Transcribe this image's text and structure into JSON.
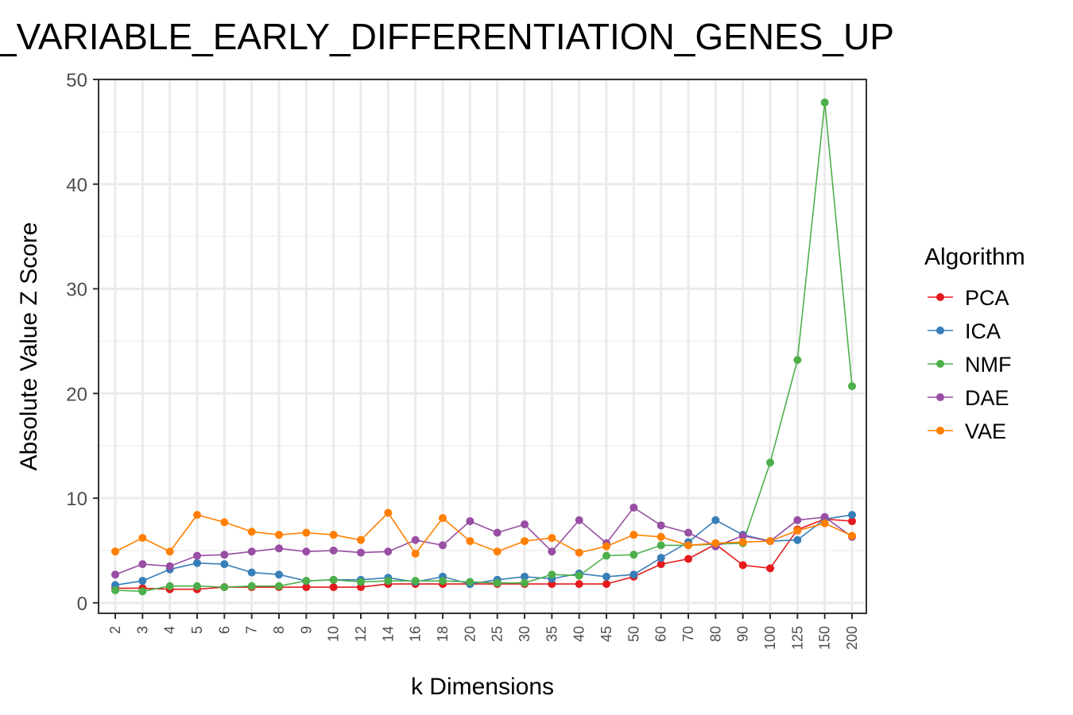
{
  "chart_data": {
    "type": "line",
    "title": "_VARIABLE_EARLY_DIFFERENTIATION_GENES_UP",
    "xlabel": "k Dimensions",
    "ylabel": "Absolute Value Z Score",
    "categories": [
      "2",
      "3",
      "4",
      "5",
      "6",
      "7",
      "8",
      "9",
      "10",
      "12",
      "14",
      "16",
      "18",
      "20",
      "25",
      "30",
      "35",
      "40",
      "45",
      "50",
      "60",
      "70",
      "80",
      "90",
      "100",
      "125",
      "150",
      "200"
    ],
    "ylim": [
      -1,
      50
    ],
    "yticks": [
      0,
      10,
      20,
      30,
      40,
      50
    ],
    "grid": true,
    "legend": {
      "title": "Algorithm",
      "position": "right"
    },
    "series": [
      {
        "name": "PCA",
        "color": "#E41A1C",
        "values": [
          1.4,
          1.4,
          1.3,
          1.3,
          1.5,
          1.5,
          1.5,
          1.5,
          1.5,
          1.5,
          1.8,
          1.8,
          1.8,
          1.8,
          1.8,
          1.8,
          1.8,
          1.8,
          1.8,
          2.5,
          3.7,
          4.2,
          5.6,
          3.6,
          3.3,
          7.0,
          8.0,
          7.8
        ]
      },
      {
        "name": "ICA",
        "color": "#377EB8",
        "values": [
          1.7,
          2.1,
          3.2,
          3.8,
          3.7,
          2.9,
          2.7,
          2.1,
          2.2,
          2.2,
          2.4,
          2.0,
          2.5,
          1.8,
          2.2,
          2.5,
          2.3,
          2.8,
          2.5,
          2.7,
          4.3,
          5.8,
          7.9,
          6.5,
          5.9,
          6.0,
          8.0,
          8.4
        ]
      },
      {
        "name": "NMF",
        "color": "#4DAF4A",
        "values": [
          1.2,
          1.1,
          1.6,
          1.6,
          1.5,
          1.6,
          1.6,
          2.1,
          2.2,
          2.0,
          2.1,
          2.1,
          2.1,
          2.0,
          1.9,
          1.9,
          2.7,
          2.6,
          4.5,
          4.6,
          5.5,
          5.5,
          5.6,
          5.7,
          13.4,
          23.2,
          47.8,
          20.7
        ]
      },
      {
        "name": "DAE",
        "color": "#984EA3",
        "values": [
          2.7,
          3.7,
          3.5,
          4.5,
          4.6,
          4.9,
          5.2,
          4.9,
          5.0,
          4.8,
          4.9,
          6.0,
          5.5,
          7.8,
          6.7,
          7.5,
          4.9,
          7.9,
          5.7,
          9.1,
          7.4,
          6.7,
          5.4,
          6.4,
          5.9,
          7.9,
          8.2,
          6.3
        ]
      },
      {
        "name": "VAE",
        "color": "#FF7F00",
        "values": [
          4.9,
          6.2,
          4.9,
          8.4,
          7.7,
          6.8,
          6.5,
          6.7,
          6.5,
          6.0,
          8.6,
          4.7,
          8.1,
          5.9,
          4.9,
          5.9,
          6.2,
          4.8,
          5.4,
          6.5,
          6.3,
          5.5,
          5.7,
          5.8,
          5.9,
          6.9,
          7.6,
          6.4
        ]
      }
    ]
  }
}
